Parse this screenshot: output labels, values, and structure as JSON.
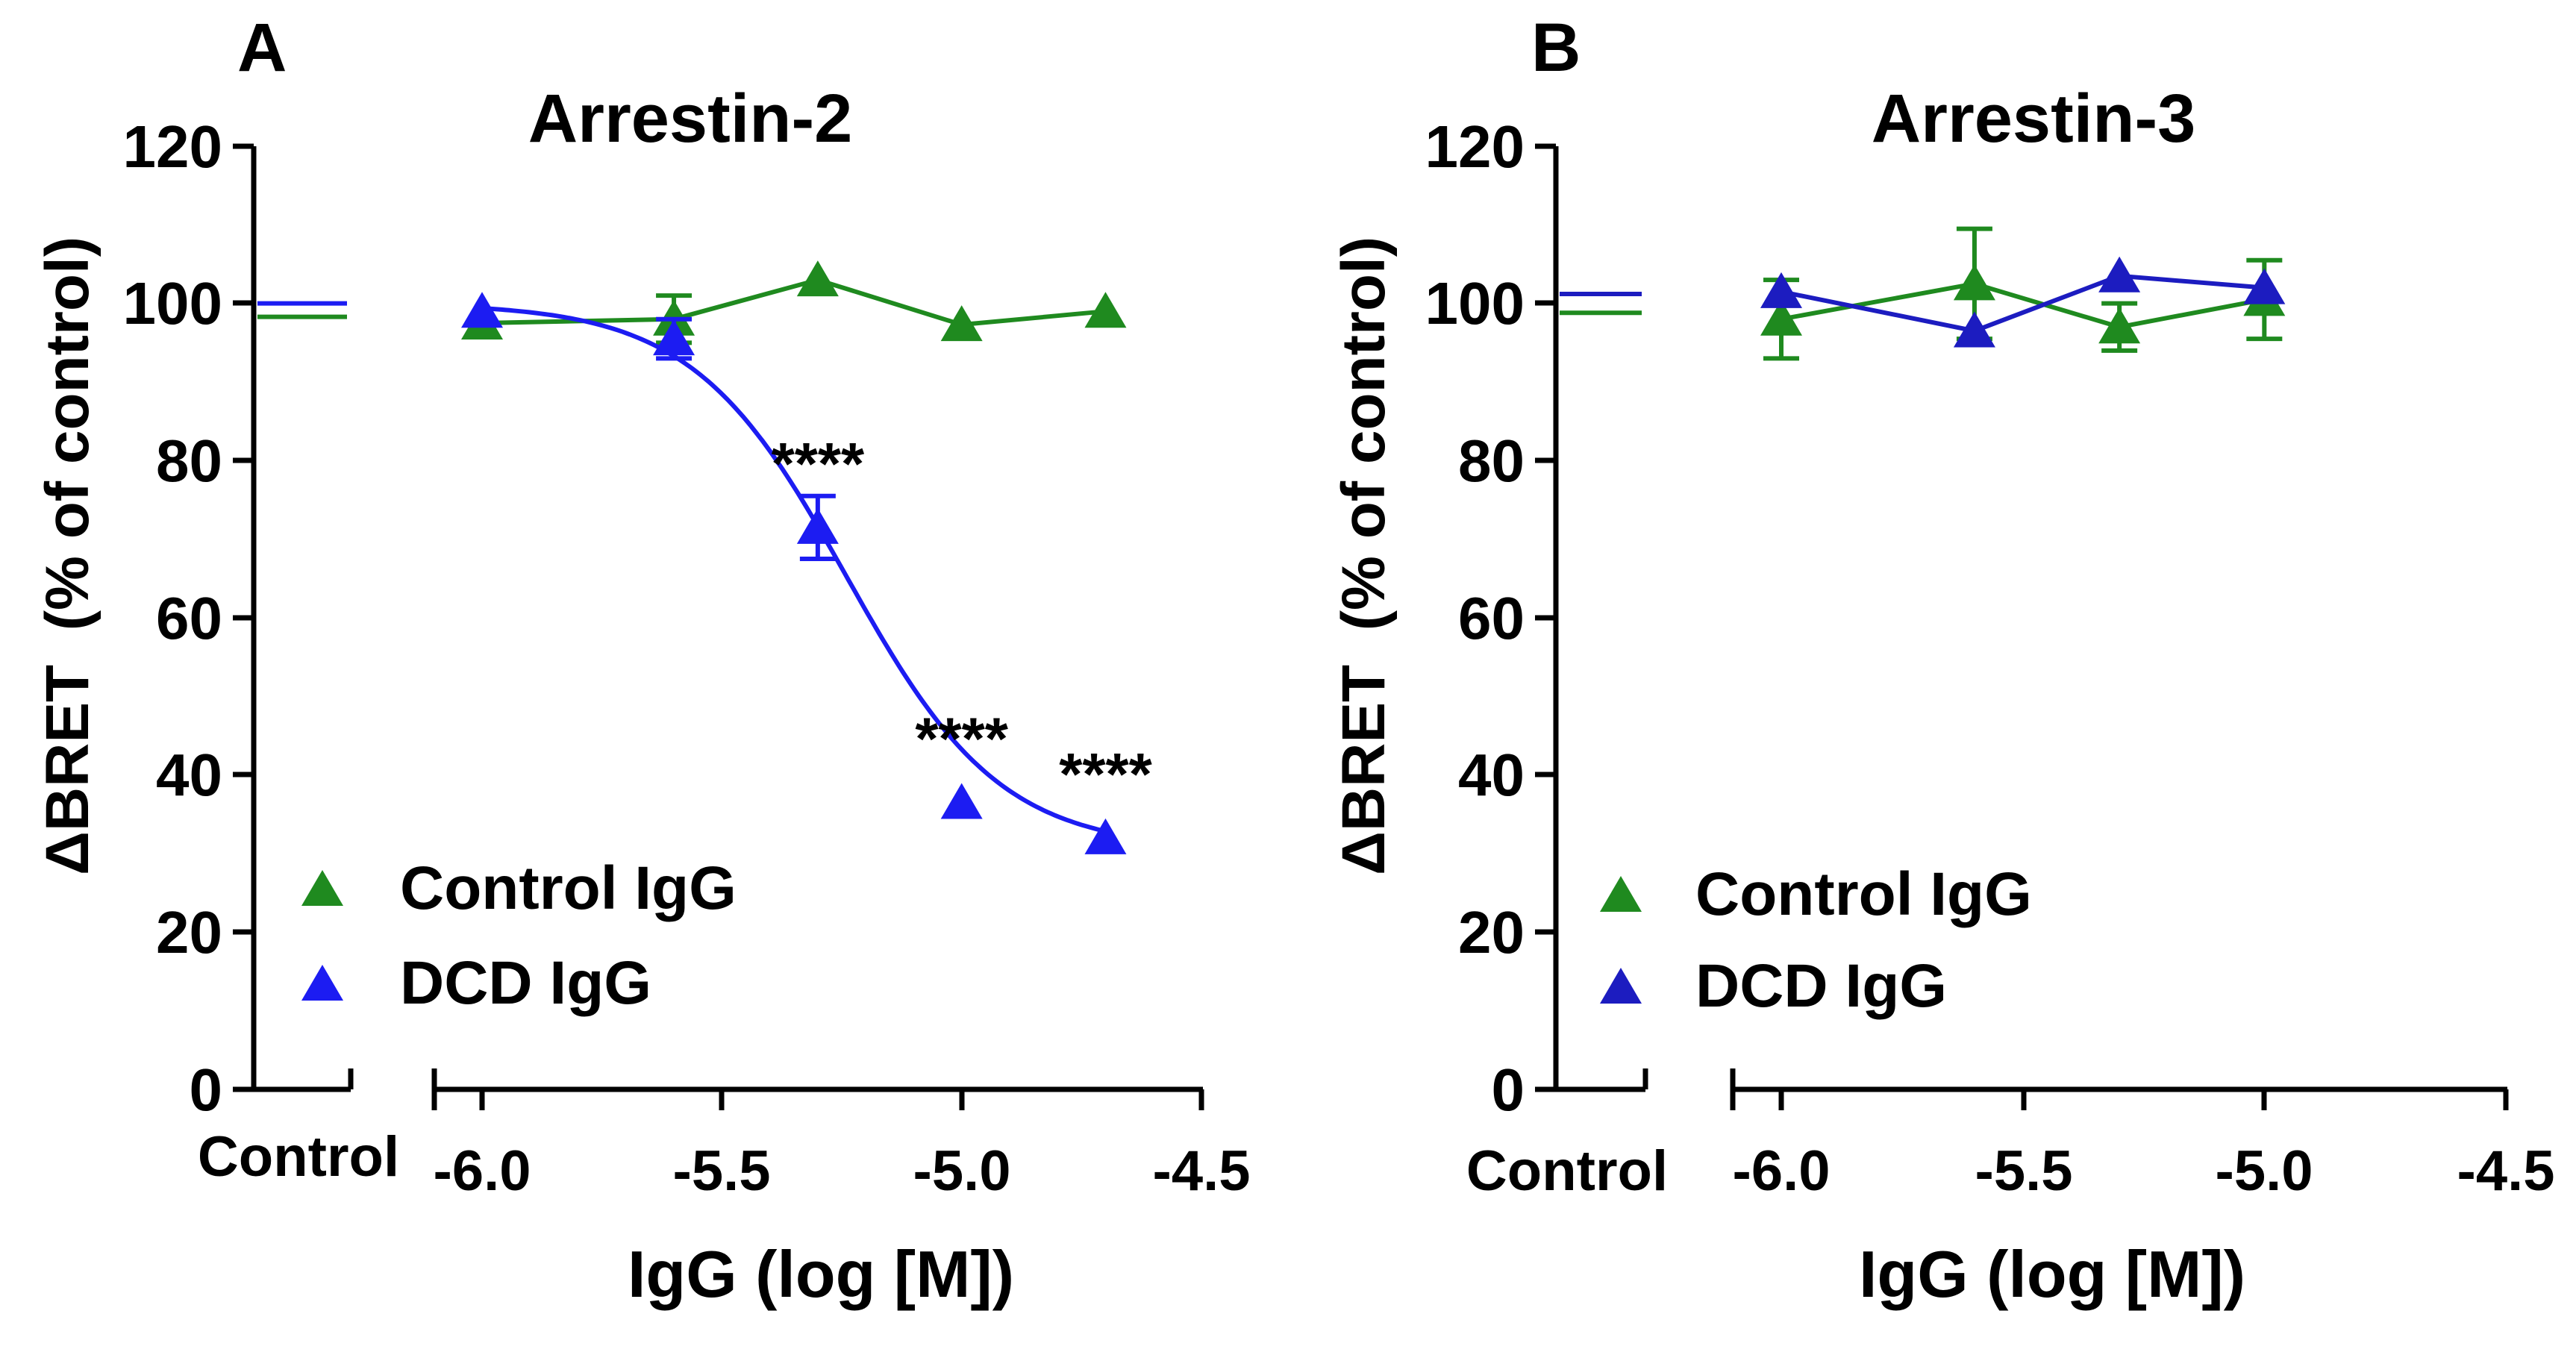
{
  "colors": {
    "control": "#1f8a1f",
    "dcd_a": "#1c1cf2",
    "dcd_b": "#1c1cc0",
    "axis": "#000000"
  },
  "chart_data": [
    {
      "panel": "A",
      "type": "line",
      "title": "Arrestin-2",
      "xlabel": "IgG (log [M])",
      "ylabel": "ΔBRET  (% of control)",
      "ylim": [
        0,
        120
      ],
      "xlim": [
        -6.1,
        -4.5
      ],
      "yticks": [
        0,
        20,
        40,
        60,
        80,
        100,
        120
      ],
      "xticks": [
        -6.0,
        -5.5,
        -5.0,
        -4.5
      ],
      "xtick_labels": [
        "-6.0",
        "-5.5",
        "-5.0",
        "-4.5"
      ],
      "control_label": "Control",
      "legend_position": "bottom-left",
      "series": [
        {
          "name": "Control IgG",
          "color_key": "control",
          "control_value": 98.3,
          "x": [
            -6.0,
            -5.6,
            -5.3,
            -5.0,
            -4.7
          ],
          "y": [
            97.5,
            98.0,
            103.0,
            97.3,
            99.0
          ],
          "error": [
            0,
            3.0,
            0,
            0,
            0
          ],
          "curve": "connect"
        },
        {
          "name": "DCD IgG",
          "color_key": "dcd_a",
          "control_value": 100.0,
          "x": [
            -6.0,
            -5.6,
            -5.3,
            -5.0,
            -4.7
          ],
          "y": [
            99.0,
            95.5,
            71.5,
            36.5,
            32.0
          ],
          "error": [
            0,
            2.5,
            4.0,
            0,
            0
          ],
          "curve": "sigmoid",
          "fit": {
            "top": 100.0,
            "bottom": 30.5,
            "logEC50": -5.24,
            "hill": 2.7
          },
          "annotations": [
            {
              "x": -5.3,
              "y": 71.5,
              "text": "****"
            },
            {
              "x": -5.0,
              "y": 36.5,
              "text": "****"
            },
            {
              "x": -4.7,
              "y": 32.0,
              "text": "****"
            }
          ]
        }
      ]
    },
    {
      "panel": "B",
      "type": "line",
      "title": "Arrestin-3",
      "xlabel": "IgG (log [M])",
      "ylabel": "ΔBRET  (% of control)",
      "ylim": [
        0,
        120
      ],
      "xlim": [
        -6.1,
        -4.5
      ],
      "yticks": [
        0,
        20,
        40,
        60,
        80,
        100,
        120
      ],
      "xticks": [
        -6.0,
        -5.5,
        -5.0,
        -4.5
      ],
      "xtick_labels": [
        "-6.0",
        "-5.5",
        "-5.0",
        "-4.5"
      ],
      "control_label": "Control",
      "legend_position": "bottom-left",
      "series": [
        {
          "name": "Control IgG",
          "color_key": "control",
          "control_value": 98.8,
          "x": [
            -6.0,
            -5.6,
            -5.3,
            -5.0
          ],
          "y": [
            98.0,
            102.5,
            97.0,
            100.5
          ],
          "error": [
            5.0,
            7.0,
            3.0,
            5.0
          ],
          "curve": "connect"
        },
        {
          "name": "DCD IgG",
          "color_key": "dcd_b",
          "control_value": 101.2,
          "x": [
            -6.0,
            -5.6,
            -5.3,
            -5.0
          ],
          "y": [
            101.5,
            96.5,
            103.5,
            102.0
          ],
          "error": [
            0,
            0,
            0,
            0
          ],
          "curve": "connect"
        }
      ]
    }
  ]
}
